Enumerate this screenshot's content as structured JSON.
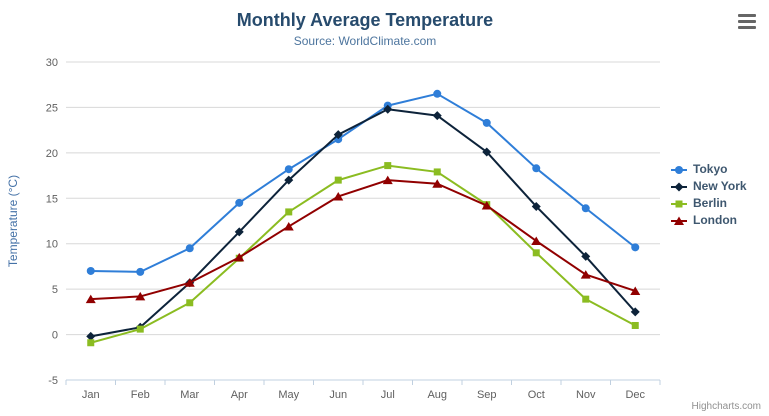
{
  "chart": {
    "title": "Monthly Average Temperature",
    "subtitle": "Source: WorldClimate.com",
    "y_axis_title": "Temperature (°C)",
    "credit": "Highcharts.com"
  },
  "chart_data": {
    "type": "line",
    "title": "Monthly Average Temperature",
    "subtitle": "Source: WorldClimate.com",
    "xlabel": "",
    "ylabel": "Temperature (°C)",
    "categories": [
      "Jan",
      "Feb",
      "Mar",
      "Apr",
      "May",
      "Jun",
      "Jul",
      "Aug",
      "Sep",
      "Oct",
      "Nov",
      "Dec"
    ],
    "series": [
      {
        "name": "Tokyo",
        "color": "#2f7ed8",
        "marker": "circle",
        "values": [
          7.0,
          6.9,
          9.5,
          14.5,
          18.2,
          21.5,
          25.2,
          26.5,
          23.3,
          18.3,
          13.9,
          9.6
        ]
      },
      {
        "name": "New York",
        "color": "#0d233a",
        "marker": "diamond",
        "values": [
          -0.2,
          0.8,
          5.7,
          11.3,
          17.0,
          22.0,
          24.8,
          24.1,
          20.1,
          14.1,
          8.6,
          2.5
        ]
      },
      {
        "name": "Berlin",
        "color": "#8bbc21",
        "marker": "square",
        "values": [
          -0.9,
          0.6,
          3.5,
          8.4,
          13.5,
          17.0,
          18.6,
          17.9,
          14.3,
          9.0,
          3.9,
          1.0
        ]
      },
      {
        "name": "London",
        "color": "#910000",
        "marker": "triangle",
        "values": [
          3.9,
          4.2,
          5.7,
          8.5,
          11.9,
          15.2,
          17.0,
          16.6,
          14.2,
          10.3,
          6.6,
          4.8
        ]
      }
    ],
    "ylim": [
      -5,
      30
    ],
    "y_tick_interval": 5,
    "grid": true,
    "legend_position": "right"
  }
}
